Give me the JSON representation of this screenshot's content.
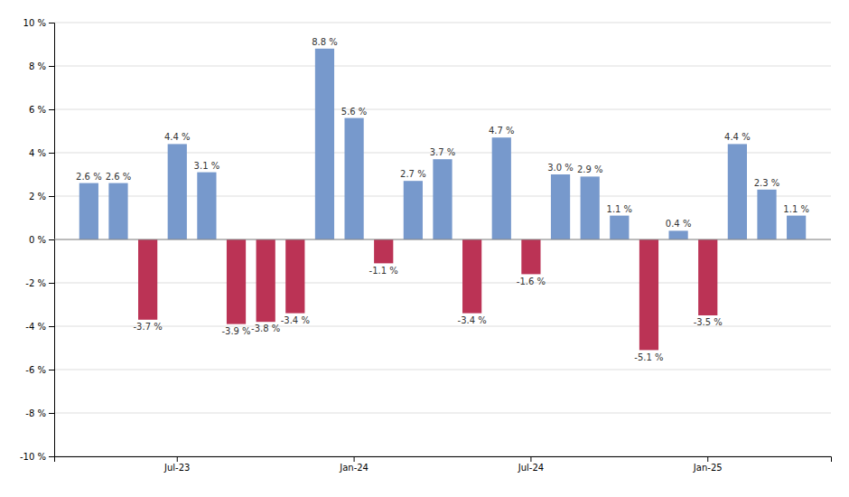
{
  "chart_data": {
    "type": "bar",
    "categories": [
      null,
      null,
      null,
      "Jul-23",
      null,
      null,
      null,
      null,
      null,
      "Jan-24",
      null,
      null,
      null,
      null,
      null,
      "Jul-24",
      null,
      null,
      null,
      null,
      null,
      "Jan-25",
      null,
      null,
      null
    ],
    "values": [
      2.6,
      2.6,
      -3.7,
      4.4,
      3.1,
      -3.9,
      -3.8,
      -3.4,
      8.8,
      5.6,
      -1.1,
      2.7,
      3.7,
      -3.4,
      4.7,
      -1.6,
      3.0,
      2.9,
      1.1,
      -5.1,
      0.4,
      -3.5,
      4.4,
      2.3,
      1.1
    ],
    "value_labels": [
      "2.6 %",
      "2.6 %",
      "-3.7 %",
      "4.4 %",
      "3.1 %",
      "-3.9 %",
      "-3.8 %",
      "-3.4 %",
      "8.8 %",
      "5.6 %",
      "-1.1 %",
      "2.7 %",
      "3.7 %",
      "-3.4 %",
      "4.7 %",
      "-1.6 %",
      "3.0 %",
      "2.9 %",
      "1.1 %",
      "-5.1 %",
      "0.4 %",
      "-3.5 %",
      "4.4 %",
      "2.3 %",
      "1.1 %"
    ],
    "colors": [
      "#7799cc",
      "#7799cc",
      "#bb3355",
      "#7799cc",
      "#7799cc",
      "#bb3355",
      "#bb3355",
      "#bb3355",
      "#7799cc",
      "#7799cc",
      "#bb3355",
      "#7799cc",
      "#7799cc",
      "#bb3355",
      "#7799cc",
      "#bb3355",
      "#7799cc",
      "#7799cc",
      "#7799cc",
      "#bb3355",
      "#7799cc",
      "#bb3355",
      "#7799cc",
      "#7799cc",
      "#7799cc"
    ],
    "ylim": [
      -10,
      10
    ],
    "yticks": [
      {
        "value": -10,
        "label": "-10 %"
      },
      {
        "value": -8,
        "label": "-8 %"
      },
      {
        "value": -6,
        "label": "-6 %"
      },
      {
        "value": -4,
        "label": "-4 %"
      },
      {
        "value": -2,
        "label": "-2 %"
      },
      {
        "value": 0,
        "label": "0 %"
      },
      {
        "value": 2,
        "label": "2 %"
      },
      {
        "value": 4,
        "label": "4 %"
      },
      {
        "value": 6,
        "label": "6 %"
      },
      {
        "value": 8,
        "label": "8 %"
      },
      {
        "value": 10,
        "label": "10 %"
      }
    ],
    "grid": true,
    "data_labels": true
  }
}
